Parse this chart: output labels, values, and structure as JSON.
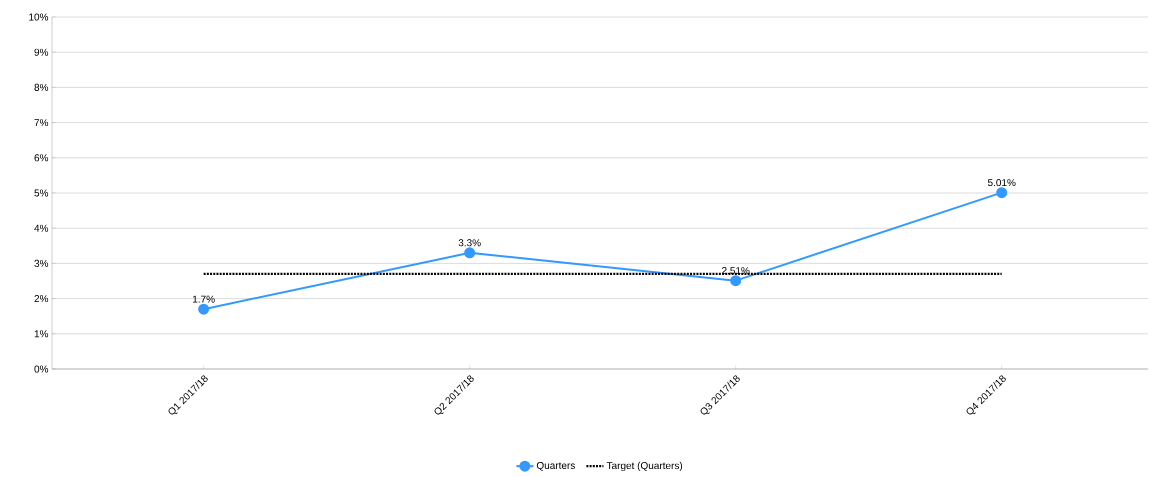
{
  "chart_data": {
    "type": "line",
    "categories": [
      "Q1 2017/18",
      "Q2 2017/18",
      "Q3 2017/18",
      "Q4 2017/18"
    ],
    "series": [
      {
        "name": "Quarters",
        "color": "#3399ff",
        "values": [
          1.7,
          3.3,
          2.51,
          5.01
        ],
        "marker": "circle",
        "line_style": "solid",
        "value_labels": [
          "1.7%",
          "3.3%",
          "2.51%",
          "5.01%"
        ]
      },
      {
        "name": "Target (Quarters)",
        "color": "#000000",
        "values": [
          2.7,
          2.7,
          2.7,
          2.7
        ],
        "marker": "none",
        "line_style": "dotted"
      }
    ],
    "ylim": [
      0,
      10
    ],
    "yticks": [
      {
        "value": 0,
        "label": "0%"
      },
      {
        "value": 1,
        "label": "1%"
      },
      {
        "value": 2,
        "label": "2%"
      },
      {
        "value": 3,
        "label": "3%"
      },
      {
        "value": 4,
        "label": "4%"
      },
      {
        "value": 5,
        "label": "5%"
      },
      {
        "value": 6,
        "label": "6%"
      },
      {
        "value": 7,
        "label": "7%"
      },
      {
        "value": 8,
        "label": "8%"
      },
      {
        "value": 9,
        "label": "9%"
      },
      {
        "value": 10,
        "label": "10%"
      }
    ],
    "grid": "y",
    "legend": "bottom"
  }
}
